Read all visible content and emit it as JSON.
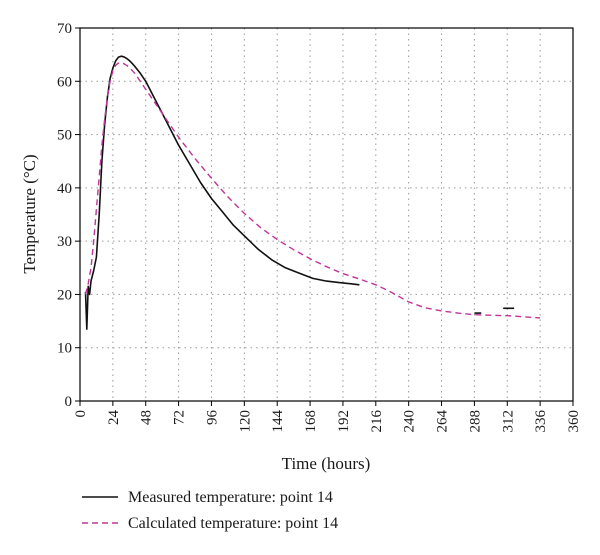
{
  "chart_data": {
    "type": "line",
    "xlabel": "Time (hours)",
    "ylabel": "Temperature (°C)",
    "xlim": [
      0,
      360
    ],
    "ylim": [
      0,
      70
    ],
    "x_ticks": [
      "0",
      "24",
      "48",
      "72",
      "96",
      "120",
      "144",
      "168",
      "192",
      "216",
      "240",
      "264",
      "288",
      "312",
      "336",
      "360"
    ],
    "y_ticks": [
      "0",
      "10",
      "20",
      "30",
      "40",
      "50",
      "60",
      "70"
    ],
    "grid": true,
    "legend_position": "bottom",
    "series": [
      {
        "name": "Measured temperature: point 14",
        "color": "#111111",
        "style": "solid",
        "x": [
          4,
          5,
          6,
          7,
          8,
          10,
          12,
          14,
          16,
          18,
          20,
          22,
          24,
          26,
          28,
          30,
          32,
          34,
          36,
          38,
          40,
          44,
          48,
          52,
          56,
          60,
          66,
          72,
          80,
          88,
          96,
          104,
          112,
          120,
          130,
          140,
          150,
          160,
          170,
          180,
          190,
          198,
          204
        ],
        "y": [
          20.5,
          13.5,
          21.5,
          20,
          22.5,
          24.5,
          27,
          35,
          45,
          52,
          57,
          60.5,
          62.5,
          63.8,
          64.5,
          64.7,
          64.6,
          64.3,
          63.9,
          63.4,
          62.8,
          61.5,
          60,
          58,
          56,
          54,
          51,
          48,
          44.5,
          41,
          38,
          35.5,
          33,
          31,
          28.5,
          26.5,
          25,
          24,
          23,
          22.5,
          22.2,
          22,
          21.8
        ]
      },
      {
        "name": "Calculated temperature: point 14",
        "color": "#c0359a",
        "style": "dashed",
        "x": [
          4,
          6,
          8,
          10,
          12,
          14,
          16,
          18,
          20,
          22,
          24,
          26,
          28,
          30,
          32,
          34,
          36,
          40,
          44,
          48,
          56,
          64,
          72,
          84,
          96,
          108,
          120,
          132,
          144,
          156,
          168,
          180,
          192,
          204,
          216,
          222,
          228,
          240,
          252,
          264,
          276,
          288,
          300,
          312,
          324,
          336
        ],
        "y": [
          20,
          22,
          25,
          30,
          36,
          42,
          48,
          53,
          57,
          60,
          62,
          63,
          63.4,
          63.5,
          63.3,
          63,
          62.6,
          61.5,
          60,
          58.5,
          55.5,
          52.5,
          49.5,
          45.5,
          41.8,
          38.3,
          35.2,
          32.5,
          30.3,
          28.4,
          26.7,
          25.2,
          23.9,
          22.9,
          21.8,
          21.1,
          20.3,
          18.6,
          17.5,
          16.9,
          16.5,
          16.2,
          16.1,
          16,
          15.8,
          15.6
        ]
      }
    ]
  }
}
